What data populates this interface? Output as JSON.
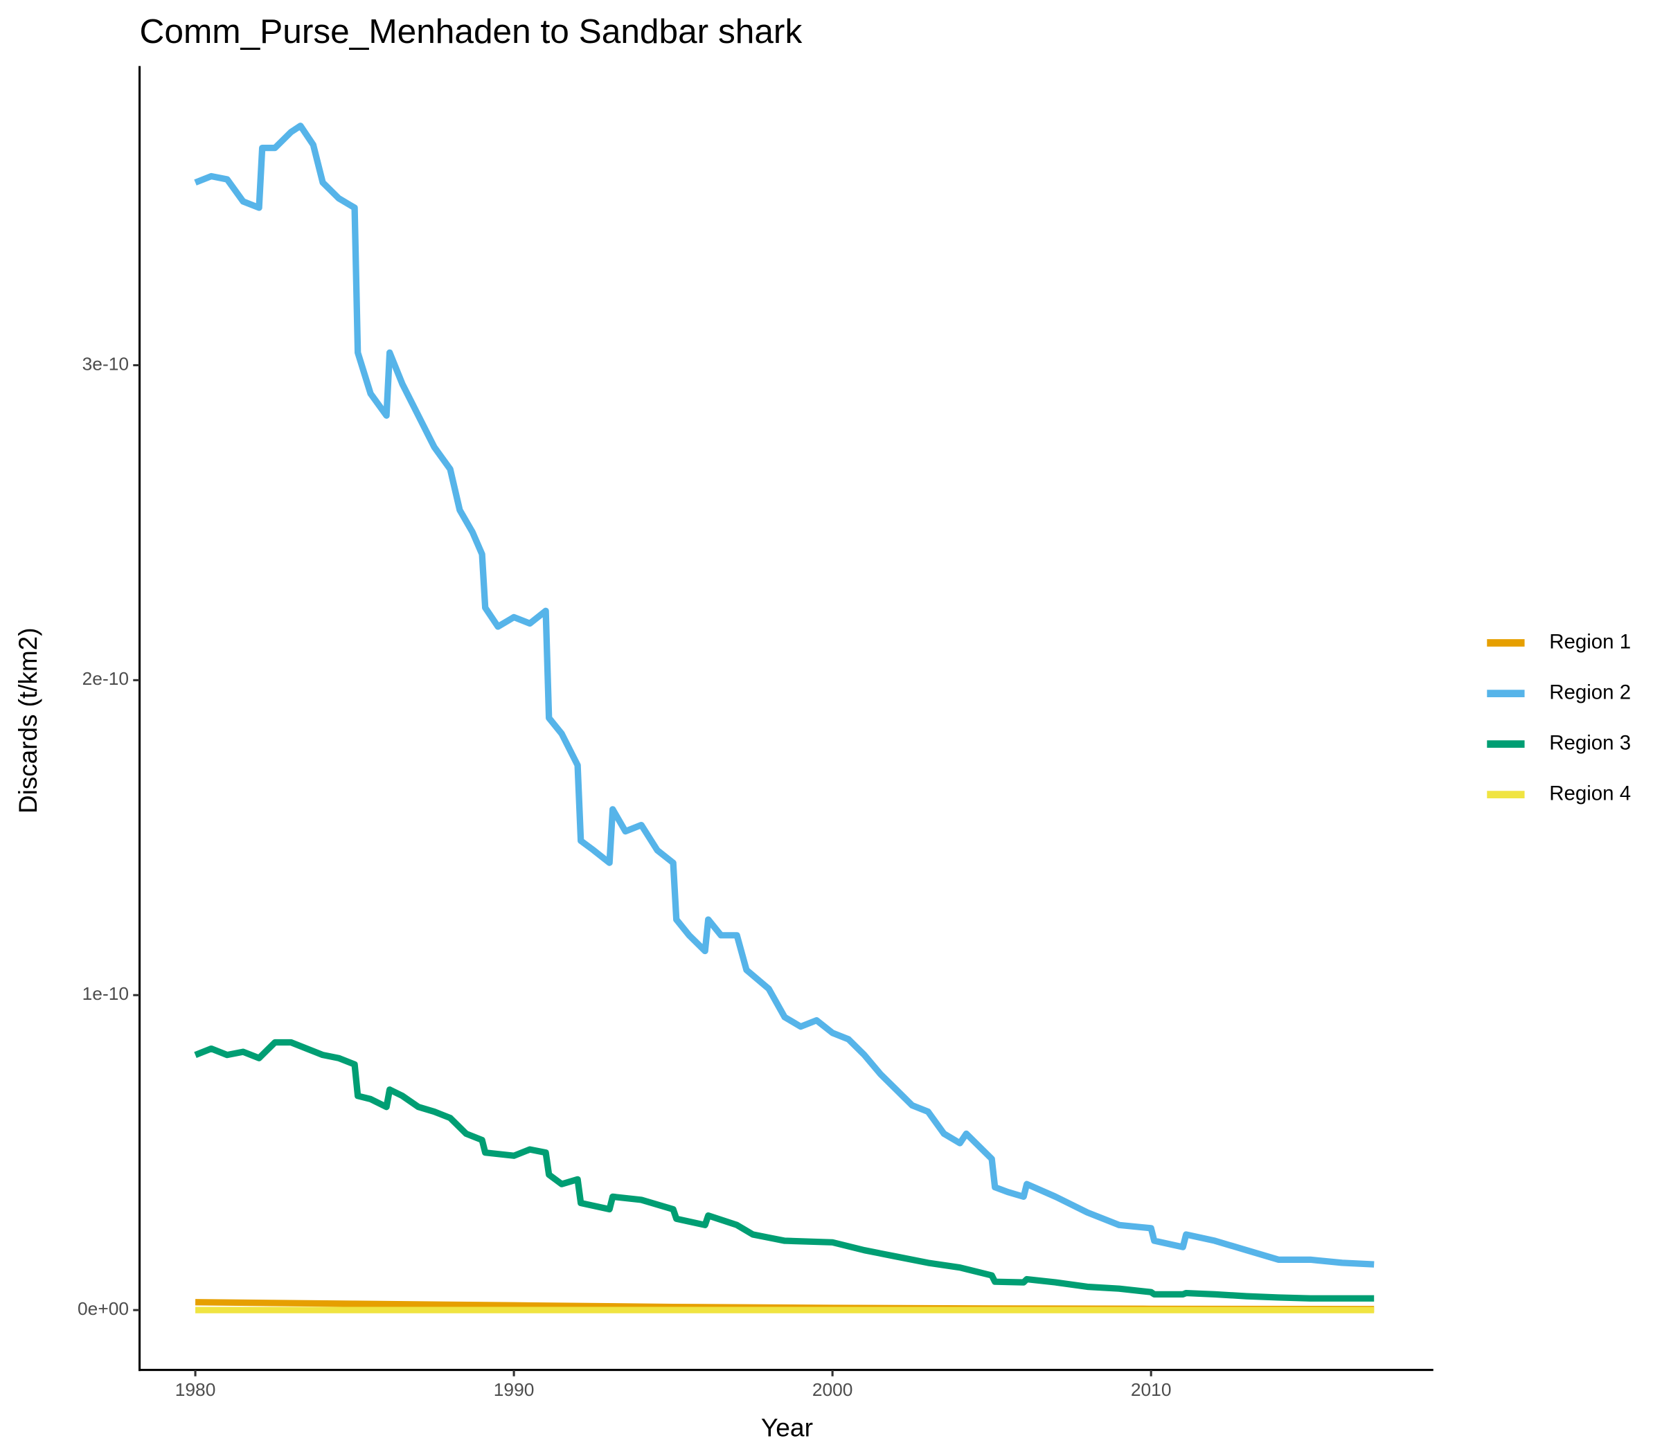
{
  "chart_data": {
    "type": "line",
    "title": "Comm_Purse_Menhaden to Sandbar shark",
    "x_label": "Year",
    "y_label": "Discards (t/km2)",
    "xlim": [
      1978.25,
      2018.86
    ],
    "ylim": [
      -1.9e-11,
      3.95e-10
    ],
    "xticks": [
      1980,
      1990,
      2000,
      2010
    ],
    "yticks": [
      {
        "value": 0,
        "label": "0e+00"
      },
      {
        "value": 1e-10,
        "label": "1e-10"
      },
      {
        "value": 2e-10,
        "label": "2e-10"
      },
      {
        "value": 3e-10,
        "label": "3e-10"
      }
    ],
    "grid": false,
    "legend_position": "right",
    "series": [
      {
        "name": "Region 1",
        "color": "#E69F00",
        "x": [
          1980,
          1985,
          1990,
          1995,
          2000,
          2005,
          2010,
          2017
        ],
        "values": [
          2.5e-12,
          2e-12,
          1.5e-12,
          1e-12,
          7e-13,
          5e-13,
          4e-13,
          3e-13
        ]
      },
      {
        "name": "Region 2",
        "color": "#56B4E9",
        "x": [
          1980,
          1980.5,
          1981,
          1981.5,
          1982,
          1982.1,
          1982.5,
          1983,
          1983.3,
          1983.7,
          1984,
          1984.5,
          1985,
          1985.1,
          1985.5,
          1986,
          1986.1,
          1986.5,
          1987,
          1987.5,
          1988,
          1988.3,
          1988.7,
          1989,
          1989.1,
          1989.5,
          1990,
          1990.5,
          1991,
          1991.1,
          1991.5,
          1992,
          1992.1,
          1992.5,
          1993,
          1993.1,
          1993.5,
          1994,
          1994.5,
          1995,
          1995.1,
          1995.5,
          1996,
          1996.1,
          1996.5,
          1997,
          1997.3,
          1998,
          1998.5,
          1999,
          1999.5,
          2000,
          2000.5,
          2001,
          2001.5,
          2002,
          2002.5,
          2003,
          2003.5,
          2004,
          2004.2,
          2004.7,
          2005,
          2005.1,
          2005.5,
          2006,
          2006.1,
          2007,
          2008,
          2009,
          2010,
          2010.1,
          2011,
          2011.1,
          2012,
          2013,
          2014,
          2015,
          2016,
          2017
        ],
        "values": [
          3.58e-10,
          3.6e-10,
          3.59e-10,
          3.52e-10,
          3.5e-10,
          3.69e-10,
          3.69e-10,
          3.74e-10,
          3.76e-10,
          3.7e-10,
          3.58e-10,
          3.53e-10,
          3.5e-10,
          3.04e-10,
          2.91e-10,
          2.84e-10,
          3.04e-10,
          2.94e-10,
          2.84e-10,
          2.74e-10,
          2.67e-10,
          2.54e-10,
          2.47e-10,
          2.4e-10,
          2.23e-10,
          2.17e-10,
          2.2e-10,
          2.18e-10,
          2.22e-10,
          1.88e-10,
          1.83e-10,
          1.73e-10,
          1.49e-10,
          1.46e-10,
          1.42e-10,
          1.59e-10,
          1.52e-10,
          1.54e-10,
          1.46e-10,
          1.42e-10,
          1.24e-10,
          1.19e-10,
          1.14e-10,
          1.24e-10,
          1.19e-10,
          1.19e-10,
          1.08e-10,
          1.02e-10,
          9.3e-11,
          9e-11,
          9.2e-11,
          8.8e-11,
          8.6e-11,
          8.1e-11,
          7.5e-11,
          7e-11,
          6.5e-11,
          6.3e-11,
          5.6e-11,
          5.3e-11,
          5.6e-11,
          5.1e-11,
          4.8e-11,
          3.9e-11,
          3.75e-11,
          3.6e-11,
          4e-11,
          3.6e-11,
          3.1e-11,
          2.7e-11,
          2.6e-11,
          2.2e-11,
          2e-11,
          2.4e-11,
          2.2e-11,
          1.9e-11,
          1.6e-11,
          1.6e-11,
          1.5e-11,
          1.45e-11
        ]
      },
      {
        "name": "Region 3",
        "color": "#009E73",
        "x": [
          1980,
          1980.5,
          1981,
          1981.5,
          1982,
          1982.5,
          1983,
          1983.5,
          1984,
          1984.5,
          1985,
          1985.1,
          1985.5,
          1986,
          1986.1,
          1986.5,
          1987,
          1987.5,
          1988,
          1988.5,
          1989,
          1989.1,
          1990,
          1990.5,
          1991,
          1991.1,
          1991.5,
          1992,
          1992.1,
          1993,
          1993.1,
          1994,
          1995,
          1995.1,
          1996,
          1996.1,
          1997,
          1997.5,
          1998,
          1998.5,
          2000,
          2001,
          2002,
          2003,
          2004,
          2005,
          2005.1,
          2006,
          2006.1,
          2007,
          2008,
          2009,
          2010,
          2010.1,
          2011,
          2011.1,
          2012,
          2013,
          2014,
          2015,
          2016,
          2017
        ],
        "values": [
          8.1e-11,
          8.3e-11,
          8.1e-11,
          8.2e-11,
          8e-11,
          8.5e-11,
          8.5e-11,
          8.3e-11,
          8.1e-11,
          8e-11,
          7.8e-11,
          6.8e-11,
          6.7e-11,
          6.45e-11,
          7e-11,
          6.8e-11,
          6.45e-11,
          6.3e-11,
          6.1e-11,
          5.6e-11,
          5.4e-11,
          5e-11,
          4.9e-11,
          5.1e-11,
          5e-11,
          4.3e-11,
          4e-11,
          4.15e-11,
          3.4e-11,
          3.2e-11,
          3.6e-11,
          3.5e-11,
          3.2e-11,
          2.9e-11,
          2.7e-11,
          3e-11,
          2.7e-11,
          2.4e-11,
          2.3e-11,
          2.2e-11,
          2.15e-11,
          1.9e-11,
          1.7e-11,
          1.5e-11,
          1.35e-11,
          1.1e-11,
          9e-12,
          8.8e-12,
          9.8e-12,
          8.8e-12,
          7.4e-12,
          6.8e-12,
          5.7e-12,
          5e-12,
          5e-12,
          5.4e-12,
          5e-12,
          4.4e-12,
          4e-12,
          3.7e-12,
          3.7e-12,
          3.7e-12
        ]
      },
      {
        "name": "Region 4",
        "color": "#F0E442",
        "x": [
          1980,
          1990,
          2000,
          2010,
          2017
        ],
        "values": [
          0,
          0,
          0,
          0,
          0
        ]
      }
    ]
  }
}
